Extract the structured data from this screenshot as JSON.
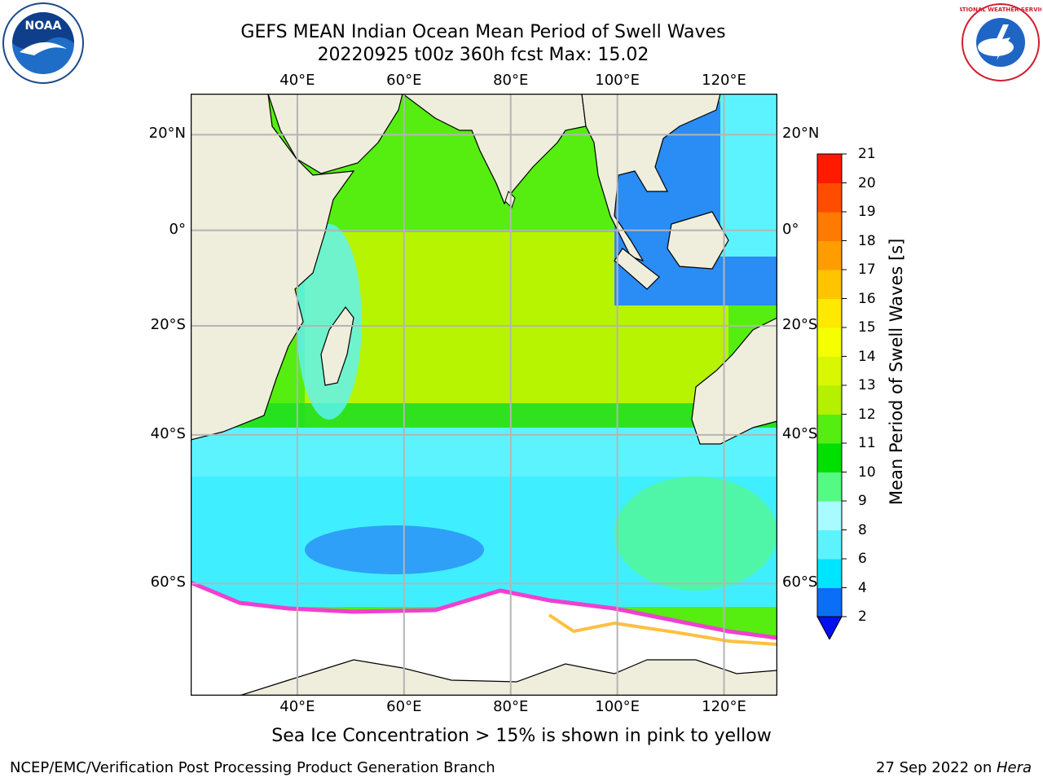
{
  "header": {
    "title_line1": "GEFS MEAN Indian Ocean Mean Period of Swell Waves",
    "title_line2": "20220925 t00z 360h fcst   Max: 15.02"
  },
  "logos": {
    "left": {
      "text": "NOAA",
      "icon": "noaa-logo"
    },
    "right": {
      "text": "NATIONAL WEATHER SERVICE",
      "icon": "nws-logo"
    }
  },
  "map": {
    "lon_ticks": [
      "40°E",
      "60°E",
      "80°E",
      "100°E",
      "120°E"
    ],
    "lat_ticks": [
      "20°N",
      "0°",
      "20°S",
      "40°S",
      "60°S"
    ],
    "lon_values": [
      40,
      60,
      80,
      100,
      120
    ],
    "lat_values": [
      20,
      0,
      -20,
      -40,
      -60
    ],
    "extent": {
      "lon_min": 20,
      "lon_max": 130,
      "lat_min": -70,
      "lat_max": 28
    }
  },
  "colorbar": {
    "title": "Mean Period of Swell Waves [s]",
    "ticks": [
      "2",
      "4",
      "6",
      "8",
      "9",
      "10",
      "11",
      "12",
      "13",
      "14",
      "15",
      "16",
      "17",
      "18",
      "19",
      "20",
      "21"
    ],
    "colors": [
      "#0a6ef7",
      "#00e5ff",
      "#5cf3ff",
      "#a8fbff",
      "#55fa82",
      "#00e000",
      "#55ee10",
      "#b4f000",
      "#d8f700",
      "#f5ff00",
      "#ffe900",
      "#ffc400",
      "#ff9d00",
      "#ff7a00",
      "#ff4d00",
      "#ff1a00"
    ],
    "extend_color": "#0010ee"
  },
  "colors": {
    "land": "#efeddc",
    "ice": "#ffffff",
    "grid": "#b4b4b4"
  },
  "note": "Sea Ice Concentration > 15% is shown in pink to yellow",
  "footer": {
    "left": "NCEP/EMC/Verification Post Processing Product Generation Branch",
    "right_prefix": "27 Sep 2022 on ",
    "right_host": "Hera"
  }
}
